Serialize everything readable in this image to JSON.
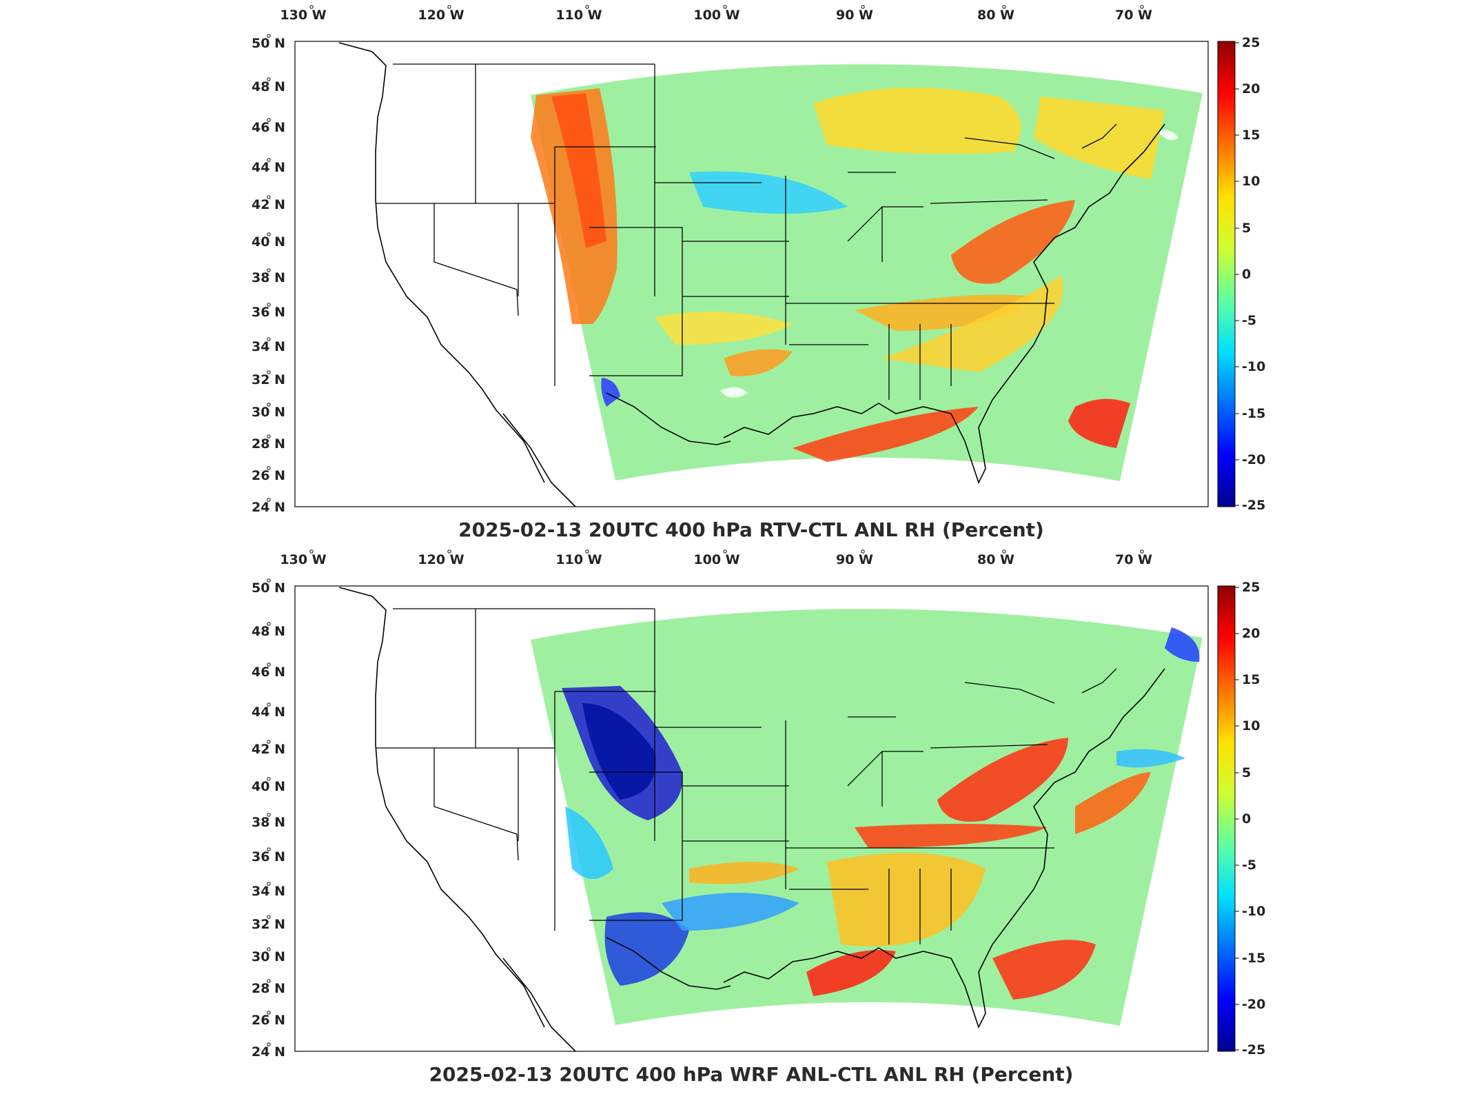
{
  "panels": [
    {
      "id": "top",
      "title": "2025-02-13 20UTC 400 hPa RTV-CTL ANL RH (Percent)",
      "lon_labels": [
        {
          "value": "130",
          "hemi": "W"
        },
        {
          "value": "120",
          "hemi": "W"
        },
        {
          "value": "110",
          "hemi": "W"
        },
        {
          "value": "100",
          "hemi": "W"
        },
        {
          "value": "90",
          "hemi": "W"
        },
        {
          "value": "80",
          "hemi": "W"
        },
        {
          "value": "70",
          "hemi": "W"
        }
      ],
      "lat_labels": [
        {
          "value": "50",
          "hemi": "N"
        },
        {
          "value": "48",
          "hemi": "N"
        },
        {
          "value": "46",
          "hemi": "N"
        },
        {
          "value": "44",
          "hemi": "N"
        },
        {
          "value": "42",
          "hemi": "N"
        },
        {
          "value": "40",
          "hemi": "N"
        },
        {
          "value": "38",
          "hemi": "N"
        },
        {
          "value": "36",
          "hemi": "N"
        },
        {
          "value": "34",
          "hemi": "N"
        },
        {
          "value": "32",
          "hemi": "N"
        },
        {
          "value": "30",
          "hemi": "N"
        },
        {
          "value": "28",
          "hemi": "N"
        },
        {
          "value": "26",
          "hemi": "N"
        },
        {
          "value": "24",
          "hemi": "N"
        }
      ],
      "colorbar_ticks": [
        "25",
        "20",
        "15",
        "10",
        "5",
        "0",
        "-5",
        "-10",
        "-15",
        "-20",
        "-25"
      ]
    },
    {
      "id": "bottom",
      "title": "2025-02-13 20UTC 400 hPa WRF ANL-CTL ANL RH (Percent)",
      "lon_labels": [
        {
          "value": "130",
          "hemi": "W"
        },
        {
          "value": "120",
          "hemi": "W"
        },
        {
          "value": "110",
          "hemi": "W"
        },
        {
          "value": "100",
          "hemi": "W"
        },
        {
          "value": "90",
          "hemi": "W"
        },
        {
          "value": "80",
          "hemi": "W"
        },
        {
          "value": "70",
          "hemi": "W"
        }
      ],
      "lat_labels": [
        {
          "value": "50",
          "hemi": "N"
        },
        {
          "value": "48",
          "hemi": "N"
        },
        {
          "value": "46",
          "hemi": "N"
        },
        {
          "value": "44",
          "hemi": "N"
        },
        {
          "value": "42",
          "hemi": "N"
        },
        {
          "value": "40",
          "hemi": "N"
        },
        {
          "value": "38",
          "hemi": "N"
        },
        {
          "value": "36",
          "hemi": "N"
        },
        {
          "value": "34",
          "hemi": "N"
        },
        {
          "value": "32",
          "hemi": "N"
        },
        {
          "value": "30",
          "hemi": "N"
        },
        {
          "value": "28",
          "hemi": "N"
        },
        {
          "value": "26",
          "hemi": "N"
        },
        {
          "value": "24",
          "hemi": "N"
        }
      ],
      "colorbar_ticks": [
        "25",
        "20",
        "15",
        "10",
        "5",
        "0",
        "-5",
        "-10",
        "-15",
        "-20",
        "-25"
      ]
    }
  ],
  "colormap": [
    "#00008f",
    "#0000ff",
    "#0070ff",
    "#00e0ff",
    "#60ffa0",
    "#d0ff30",
    "#ffe000",
    "#ff7000",
    "#ff0000",
    "#8f0000"
  ]
}
